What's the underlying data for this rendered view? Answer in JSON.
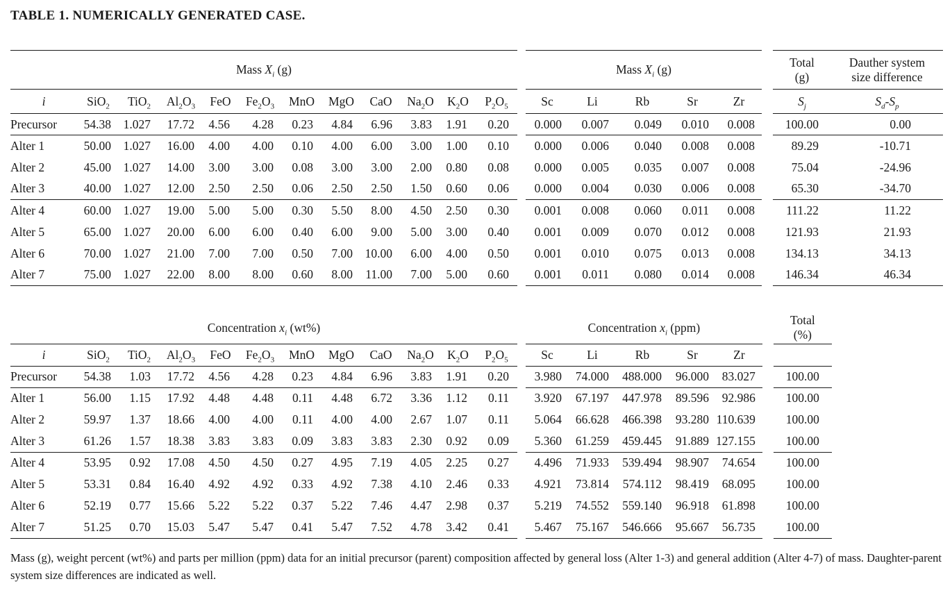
{
  "title": "TABLE 1. NUMERICALLY GENERATED CASE.",
  "caption": "Mass (g), weight percent (wt%) and parts per million (ppm) data for an initial precursor (parent) composition affected by general loss (Alter 1-3) and general addition (Alter 4-7) of mass. Daughter-parent system size differences are indicated as well.",
  "colors": {
    "text": "#1a1a1a",
    "rule": "#1a1a1a",
    "background": "#ffffff"
  },
  "tables": [
    {
      "name": "mass-table",
      "spanners": [
        "Mass *X*_{*i*} (g)",
        "Mass *X*_{*i*} (g)"
      ],
      "columns": [
        "*i*",
        "SiO_{2}",
        "TiO_{2}",
        "Al_{2}O_{3}",
        "FeO",
        "Fe_{2}O_{3}",
        "MnO",
        "MgO",
        "CaO",
        "Na_{2}O",
        "K_{2}O",
        "P_{2}O_{5}"
      ],
      "trace_columns": [
        "Sc",
        "Li",
        "Rb",
        "Sr",
        "Zr"
      ],
      "tail_columns": [
        {
          "top": "Total\n(g)",
          "sub": "*S*_{*j*}"
        },
        {
          "top": "Dauther system\nsize difference",
          "sub": "*S*_{*d*}-*S*_{*p*}"
        }
      ],
      "rows": [
        {
          "label": "Precursor",
          "oxides": [
            "54.38",
            "1.027",
            "17.72",
            "4.56",
            "4.28",
            "0.23",
            "4.84",
            "6.96",
            "3.83",
            "1.91",
            "0.20"
          ],
          "traces": [
            "0.000",
            "0.007",
            "0.049",
            "0.010",
            "0.008"
          ],
          "tail": [
            "100.00",
            "0.00"
          ]
        },
        {
          "label": "Alter 1",
          "oxides": [
            "50.00",
            "1.027",
            "16.00",
            "4.00",
            "4.00",
            "0.10",
            "4.00",
            "6.00",
            "3.00",
            "1.00",
            "0.10"
          ],
          "traces": [
            "0.000",
            "0.006",
            "0.040",
            "0.008",
            "0.008"
          ],
          "tail": [
            "89.29",
            "-10.71"
          ]
        },
        {
          "label": "Alter 2",
          "oxides": [
            "45.00",
            "1.027",
            "14.00",
            "3.00",
            "3.00",
            "0.08",
            "3.00",
            "3.00",
            "2.00",
            "0.80",
            "0.08"
          ],
          "traces": [
            "0.000",
            "0.005",
            "0.035",
            "0.007",
            "0.008"
          ],
          "tail": [
            "75.04",
            "-24.96"
          ]
        },
        {
          "label": "Alter 3",
          "oxides": [
            "40.00",
            "1.027",
            "12.00",
            "2.50",
            "2.50",
            "0.06",
            "2.50",
            "2.50",
            "1.50",
            "0.60",
            "0.06"
          ],
          "traces": [
            "0.000",
            "0.004",
            "0.030",
            "0.006",
            "0.008"
          ],
          "tail": [
            "65.30",
            "-34.70"
          ]
        },
        {
          "label": "Alter 4",
          "oxides": [
            "60.00",
            "1.027",
            "19.00",
            "5.00",
            "5.00",
            "0.30",
            "5.50",
            "8.00",
            "4.50",
            "2.50",
            "0.30"
          ],
          "traces": [
            "0.001",
            "0.008",
            "0.060",
            "0.011",
            "0.008"
          ],
          "tail": [
            "111.22",
            "11.22"
          ]
        },
        {
          "label": "Alter 5",
          "oxides": [
            "65.00",
            "1.027",
            "20.00",
            "6.00",
            "6.00",
            "0.40",
            "6.00",
            "9.00",
            "5.00",
            "3.00",
            "0.40"
          ],
          "traces": [
            "0.001",
            "0.009",
            "0.070",
            "0.012",
            "0.008"
          ],
          "tail": [
            "121.93",
            "21.93"
          ]
        },
        {
          "label": "Alter 6",
          "oxides": [
            "70.00",
            "1.027",
            "21.00",
            "7.00",
            "7.00",
            "0.50",
            "7.00",
            "10.00",
            "6.00",
            "4.00",
            "0.50"
          ],
          "traces": [
            "0.001",
            "0.010",
            "0.075",
            "0.013",
            "0.008"
          ],
          "tail": [
            "134.13",
            "34.13"
          ]
        },
        {
          "label": "Alter 7",
          "oxides": [
            "75.00",
            "1.027",
            "22.00",
            "8.00",
            "8.00",
            "0.60",
            "8.00",
            "11.00",
            "7.00",
            "5.00",
            "0.60"
          ],
          "traces": [
            "0.001",
            "0.011",
            "0.080",
            "0.014",
            "0.008"
          ],
          "tail": [
            "146.34",
            "46.34"
          ]
        }
      ]
    },
    {
      "name": "concentration-table",
      "spanners": [
        "Concentration *x*_{*i*} (wt%)",
        "Concentration *x*_{*i*} (ppm)"
      ],
      "columns": [
        "*i*",
        "SiO_{2}",
        "TiO_{2}",
        "Al_{2}O_{3}",
        "FeO",
        "Fe_{2}O_{3}",
        "MnO",
        "MgO",
        "CaO",
        "Na_{2}O",
        "K_{2}O",
        "P_{2}O_{5}"
      ],
      "trace_columns": [
        "Sc",
        "Li",
        "Rb",
        "Sr",
        "Zr"
      ],
      "tail_columns": [
        {
          "top": "Total\n(%)",
          "sub": ""
        }
      ],
      "rows": [
        {
          "label": "Precursor",
          "oxides": [
            "54.38",
            "1.03",
            "17.72",
            "4.56",
            "4.28",
            "0.23",
            "4.84",
            "6.96",
            "3.83",
            "1.91",
            "0.20"
          ],
          "traces": [
            "3.980",
            "74.000",
            "488.000",
            "96.000",
            "83.027"
          ],
          "tail": [
            "100.00"
          ]
        },
        {
          "label": "Alter 1",
          "oxides": [
            "56.00",
            "1.15",
            "17.92",
            "4.48",
            "4.48",
            "0.11",
            "4.48",
            "6.72",
            "3.36",
            "1.12",
            "0.11"
          ],
          "traces": [
            "3.920",
            "67.197",
            "447.978",
            "89.596",
            "92.986"
          ],
          "tail": [
            "100.00"
          ]
        },
        {
          "label": "Alter 2",
          "oxides": [
            "59.97",
            "1.37",
            "18.66",
            "4.00",
            "4.00",
            "0.11",
            "4.00",
            "4.00",
            "2.67",
            "1.07",
            "0.11"
          ],
          "traces": [
            "5.064",
            "66.628",
            "466.398",
            "93.280",
            "110.639"
          ],
          "tail": [
            "100.00"
          ]
        },
        {
          "label": "Alter 3",
          "oxides": [
            "61.26",
            "1.57",
            "18.38",
            "3.83",
            "3.83",
            "0.09",
            "3.83",
            "3.83",
            "2.30",
            "0.92",
            "0.09"
          ],
          "traces": [
            "5.360",
            "61.259",
            "459.445",
            "91.889",
            "127.155"
          ],
          "tail": [
            "100.00"
          ]
        },
        {
          "label": "Alter 4",
          "oxides": [
            "53.95",
            "0.92",
            "17.08",
            "4.50",
            "4.50",
            "0.27",
            "4.95",
            "7.19",
            "4.05",
            "2.25",
            "0.27"
          ],
          "traces": [
            "4.496",
            "71.933",
            "539.494",
            "98.907",
            "74.654"
          ],
          "tail": [
            "100.00"
          ]
        },
        {
          "label": "Alter 5",
          "oxides": [
            "53.31",
            "0.84",
            "16.40",
            "4.92",
            "4.92",
            "0.33",
            "4.92",
            "7.38",
            "4.10",
            "2.46",
            "0.33"
          ],
          "traces": [
            "4.921",
            "73.814",
            "574.112",
            "98.419",
            "68.095"
          ],
          "tail": [
            "100.00"
          ]
        },
        {
          "label": "Alter 6",
          "oxides": [
            "52.19",
            "0.77",
            "15.66",
            "5.22",
            "5.22",
            "0.37",
            "5.22",
            "7.46",
            "4.47",
            "2.98",
            "0.37"
          ],
          "traces": [
            "5.219",
            "74.552",
            "559.140",
            "96.918",
            "61.898"
          ],
          "tail": [
            "100.00"
          ]
        },
        {
          "label": "Alter 7",
          "oxides": [
            "51.25",
            "0.70",
            "15.03",
            "5.47",
            "5.47",
            "0.41",
            "5.47",
            "7.52",
            "4.78",
            "3.42",
            "0.41"
          ],
          "traces": [
            "5.467",
            "75.167",
            "546.666",
            "95.667",
            "56.735"
          ],
          "tail": [
            "100.00"
          ]
        }
      ]
    }
  ]
}
